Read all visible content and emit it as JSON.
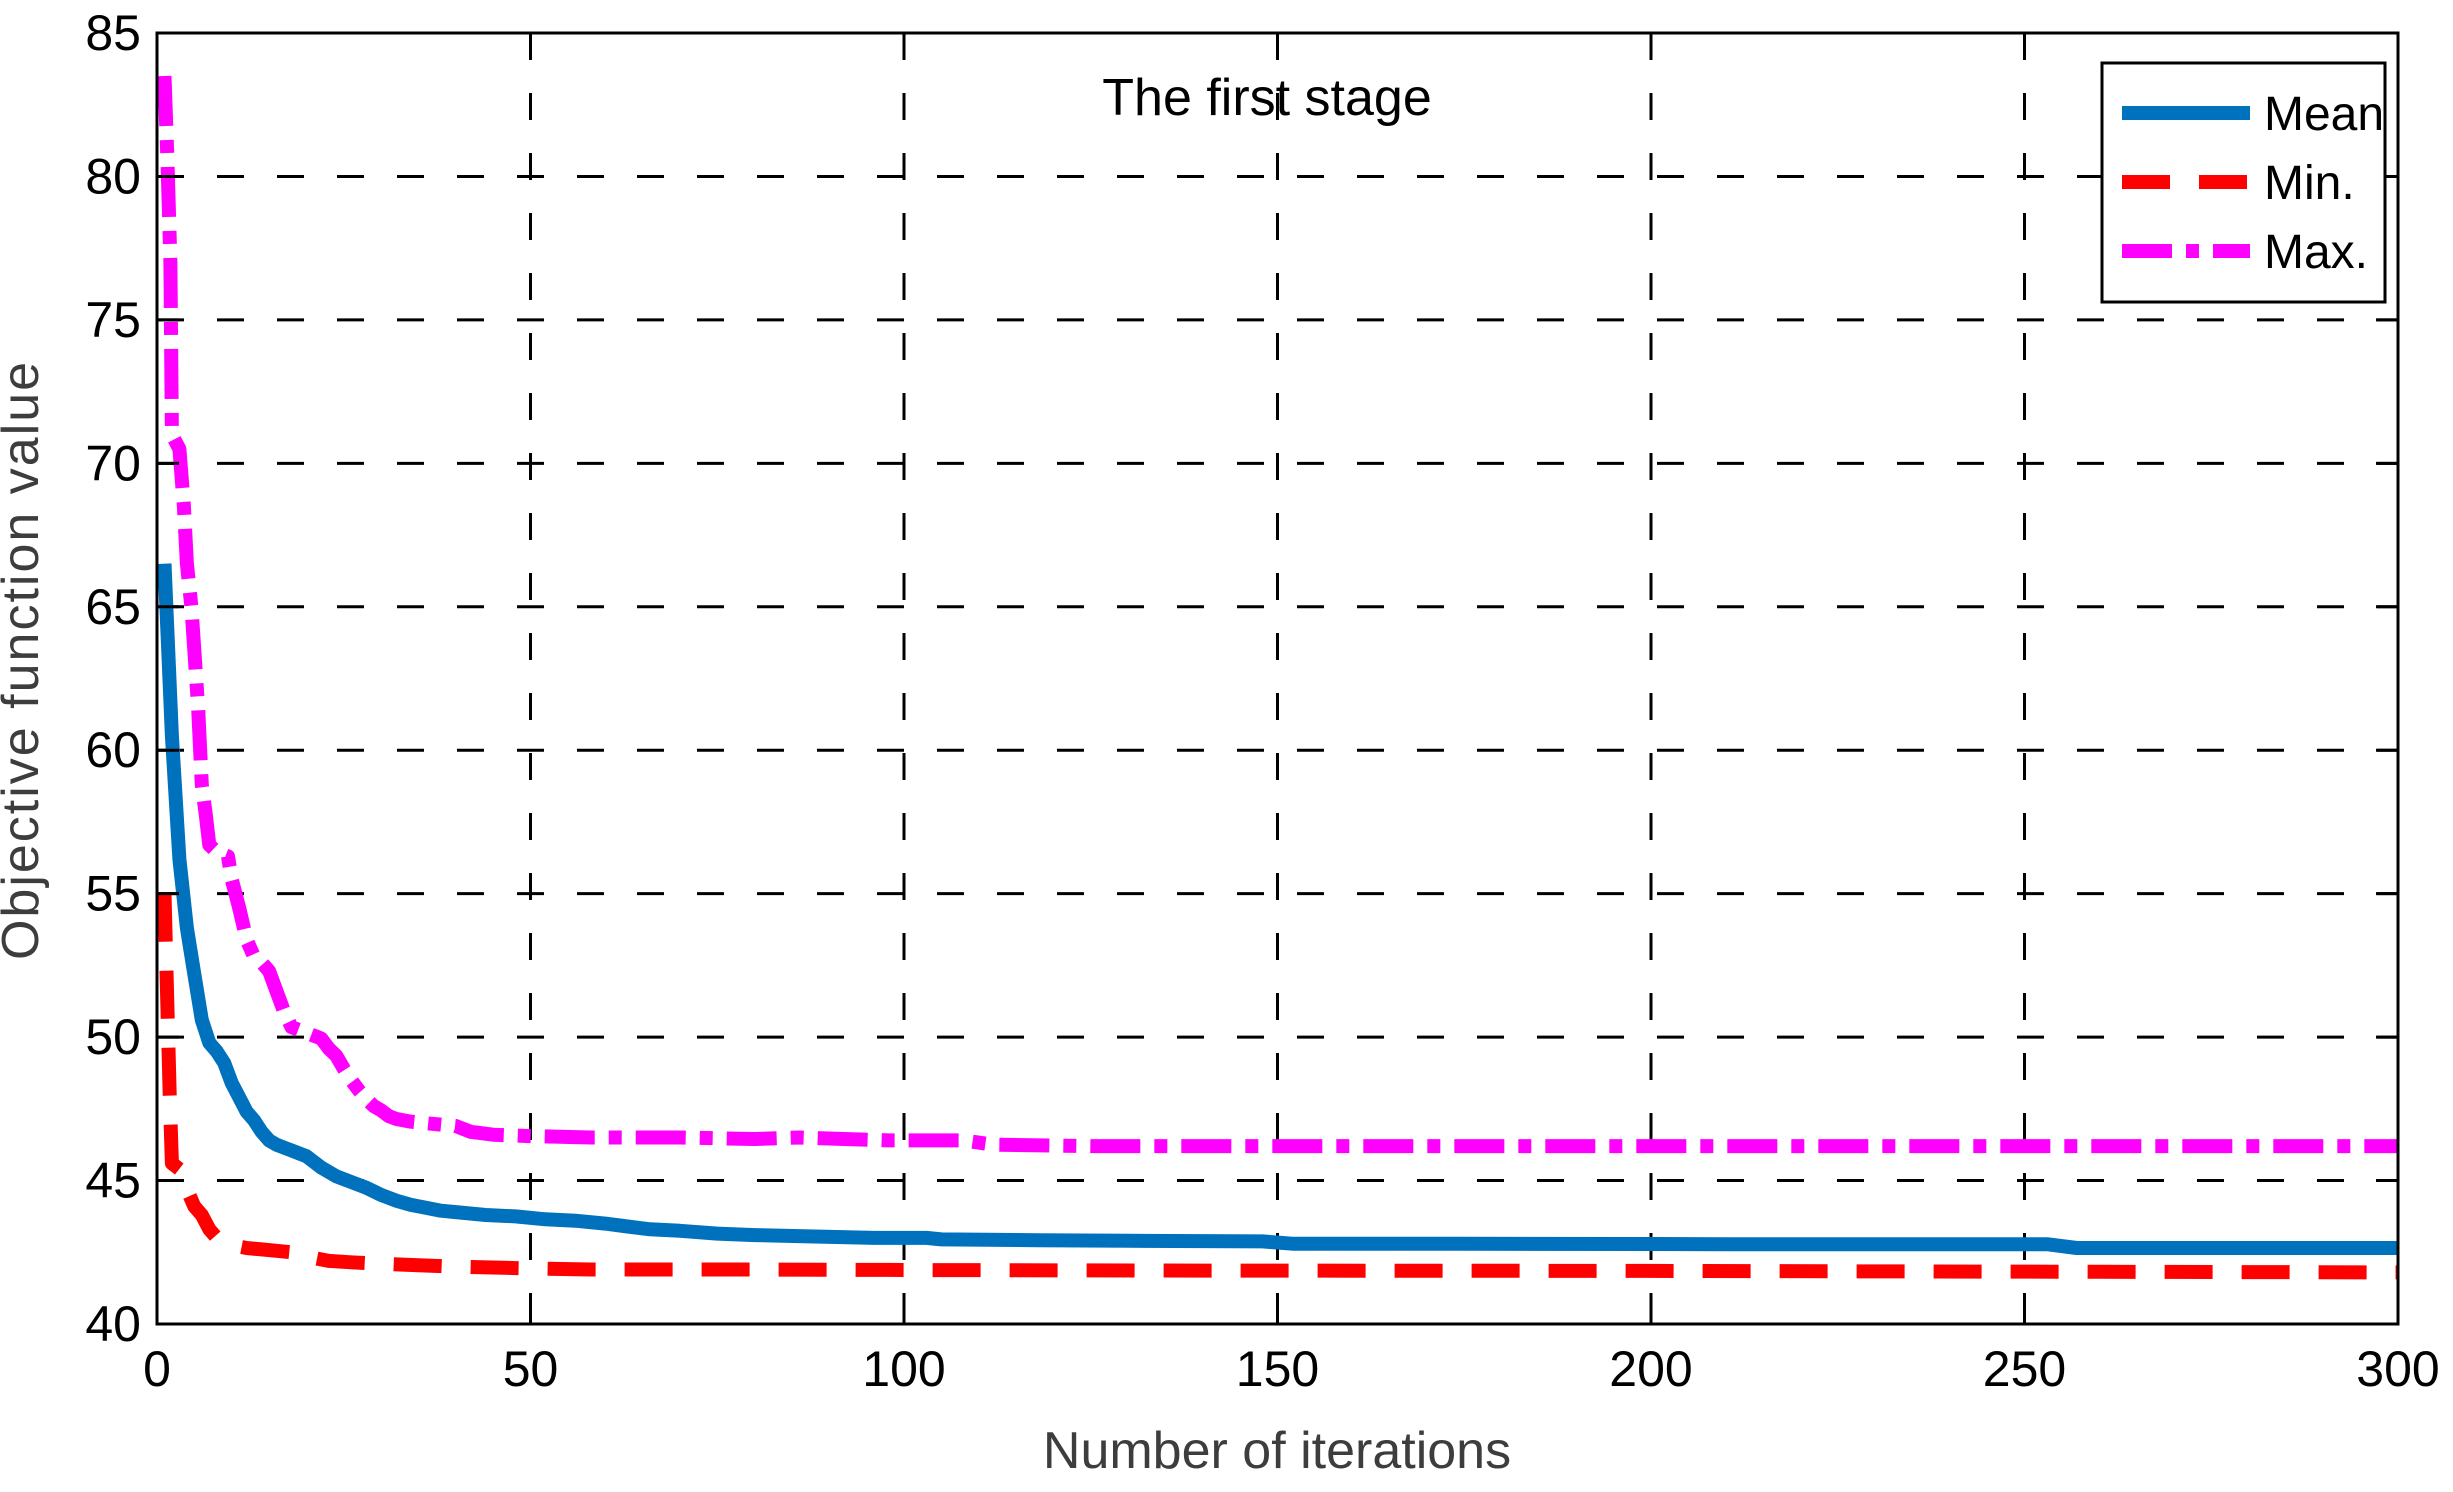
{
  "chart_data": {
    "type": "line",
    "title": "The first stage",
    "xlabel": "Number of iterations",
    "ylabel": "Objective function value",
    "xlim": [
      0,
      300
    ],
    "ylim": [
      40,
      85
    ],
    "x_ticks": [
      0,
      50,
      100,
      150,
      200,
      250,
      300
    ],
    "y_ticks": [
      40,
      45,
      50,
      55,
      60,
      65,
      70,
      75,
      80,
      85
    ],
    "grid": true,
    "legend_position": "top-right",
    "axis_color": "#000000",
    "label_color": "#3d3d3d",
    "series": [
      {
        "name": "Mean",
        "color": "#0072BD",
        "style": "solid",
        "points": [
          [
            1,
            66.5
          ],
          [
            2,
            60.5
          ],
          [
            3,
            56.2
          ],
          [
            4,
            53.8
          ],
          [
            5,
            52.2
          ],
          [
            6,
            50.6
          ],
          [
            7,
            49.8
          ],
          [
            8,
            49.5
          ],
          [
            9,
            49.1
          ],
          [
            10,
            48.4
          ],
          [
            11,
            47.9
          ],
          [
            12,
            47.4
          ],
          [
            13,
            47.1
          ],
          [
            14,
            46.7
          ],
          [
            15,
            46.4
          ],
          [
            16,
            46.25
          ],
          [
            17,
            46.15
          ],
          [
            18,
            46.05
          ],
          [
            19,
            45.95
          ],
          [
            20,
            45.85
          ],
          [
            22,
            45.45
          ],
          [
            24,
            45.15
          ],
          [
            26,
            44.95
          ],
          [
            28,
            44.75
          ],
          [
            30,
            44.5
          ],
          [
            32,
            44.3
          ],
          [
            34,
            44.15
          ],
          [
            36,
            44.05
          ],
          [
            38,
            43.95
          ],
          [
            40,
            43.9
          ],
          [
            44,
            43.8
          ],
          [
            48,
            43.75
          ],
          [
            52,
            43.65
          ],
          [
            56,
            43.6
          ],
          [
            60,
            43.5
          ],
          [
            63,
            43.4
          ],
          [
            66,
            43.3
          ],
          [
            70,
            43.25
          ],
          [
            75,
            43.15
          ],
          [
            80,
            43.1
          ],
          [
            88,
            43.05
          ],
          [
            96,
            43.0
          ],
          [
            103,
            43.0
          ],
          [
            105,
            42.95
          ],
          [
            118,
            42.92
          ],
          [
            130,
            42.9
          ],
          [
            148,
            42.88
          ],
          [
            152,
            42.8
          ],
          [
            175,
            42.8
          ],
          [
            210,
            42.78
          ],
          [
            253,
            42.78
          ],
          [
            257,
            42.65
          ],
          [
            300,
            42.65
          ]
        ]
      },
      {
        "name": "Min.",
        "color": "#FF0000",
        "style": "dashed",
        "points": [
          [
            1,
            55
          ],
          [
            1.3,
            52
          ],
          [
            1.7,
            48
          ],
          [
            2,
            45.6
          ],
          [
            3,
            45.4
          ],
          [
            3.5,
            45.1
          ],
          [
            4,
            44.7
          ],
          [
            5,
            44.1
          ],
          [
            6,
            43.8
          ],
          [
            7,
            43.3
          ],
          [
            8,
            43.0
          ],
          [
            9,
            42.85
          ],
          [
            10,
            42.75
          ],
          [
            12,
            42.65
          ],
          [
            14,
            42.6
          ],
          [
            16,
            42.55
          ],
          [
            18,
            42.5
          ],
          [
            20,
            42.45
          ],
          [
            21,
            42.3
          ],
          [
            23,
            42.2
          ],
          [
            26,
            42.15
          ],
          [
            30,
            42.1
          ],
          [
            35,
            42.05
          ],
          [
            40,
            42.0
          ],
          [
            48,
            41.95
          ],
          [
            58,
            41.9
          ],
          [
            80,
            41.9
          ],
          [
            105,
            41.88
          ],
          [
            140,
            41.86
          ],
          [
            200,
            41.85
          ],
          [
            260,
            41.82
          ],
          [
            300,
            41.8
          ]
        ]
      },
      {
        "name": "Max.",
        "color": "#FF00FF",
        "style": "dash-dot",
        "points": [
          [
            1,
            83.5
          ],
          [
            1.4,
            80.5
          ],
          [
            1.8,
            77
          ],
          [
            2,
            71
          ],
          [
            3,
            70.5
          ],
          [
            3.6,
            68.5
          ],
          [
            4,
            66.5
          ],
          [
            4.6,
            65
          ],
          [
            5,
            63.5
          ],
          [
            5.5,
            61.5
          ],
          [
            6,
            58.8
          ],
          [
            6.5,
            57.8
          ],
          [
            7,
            56.7
          ],
          [
            8,
            56.45
          ],
          [
            9.5,
            56.3
          ],
          [
            10,
            55.5
          ],
          [
            11,
            54.5
          ],
          [
            12,
            53.4
          ],
          [
            13,
            52.8
          ],
          [
            14,
            52.6
          ],
          [
            15,
            52.3
          ],
          [
            16,
            51.6
          ],
          [
            17,
            50.9
          ],
          [
            18,
            50.35
          ],
          [
            20,
            50.15
          ],
          [
            21,
            50.05
          ],
          [
            22,
            49.95
          ],
          [
            23,
            49.6
          ],
          [
            24,
            49.35
          ],
          [
            25,
            48.9
          ],
          [
            26,
            48.5
          ],
          [
            27,
            48.15
          ],
          [
            28,
            47.85
          ],
          [
            29,
            47.6
          ],
          [
            30,
            47.45
          ],
          [
            31,
            47.25
          ],
          [
            32,
            47.15
          ],
          [
            34,
            47.05
          ],
          [
            36,
            47.0
          ],
          [
            38,
            46.95
          ],
          [
            40,
            46.9
          ],
          [
            42,
            46.7
          ],
          [
            45,
            46.6
          ],
          [
            50,
            46.55
          ],
          [
            58,
            46.5
          ],
          [
            70,
            46.5
          ],
          [
            80,
            46.45
          ],
          [
            86,
            46.5
          ],
          [
            92,
            46.45
          ],
          [
            98,
            46.4
          ],
          [
            108,
            46.4
          ],
          [
            112,
            46.25
          ],
          [
            125,
            46.2
          ],
          [
            160,
            46.2
          ],
          [
            220,
            46.2
          ],
          [
            300,
            46.2
          ]
        ]
      }
    ]
  }
}
